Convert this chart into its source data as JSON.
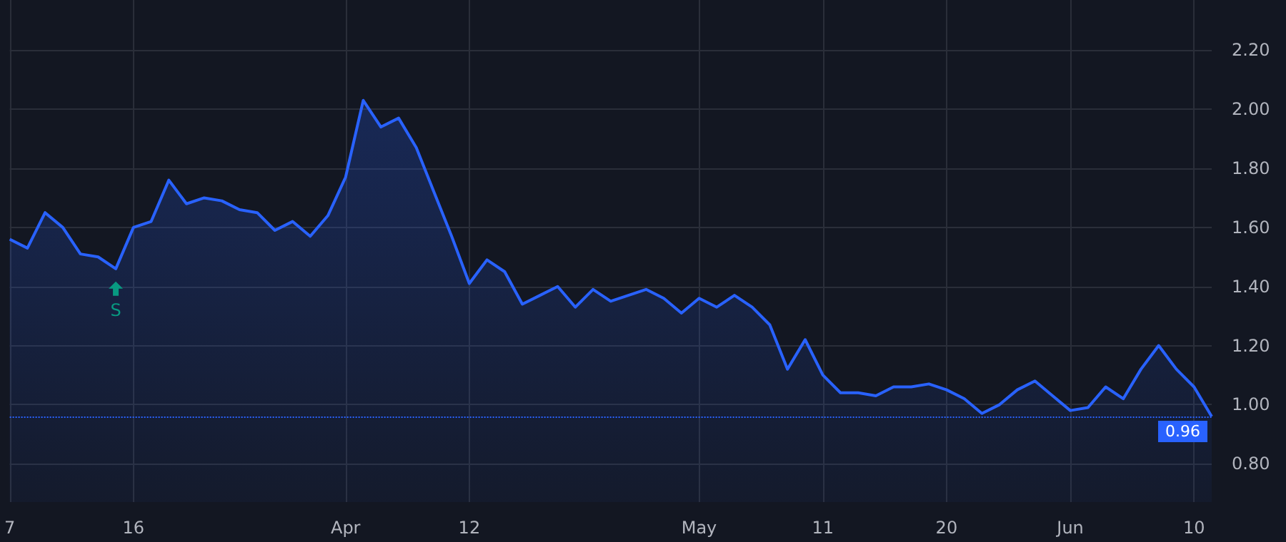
{
  "chart_data": {
    "type": "area",
    "categories": [
      "7",
      null,
      null,
      null,
      null,
      null,
      null,
      "16",
      null,
      null,
      null,
      null,
      null,
      null,
      null,
      null,
      null,
      null,
      null,
      "Apr",
      null,
      null,
      null,
      null,
      null,
      null,
      "12",
      null,
      null,
      null,
      null,
      null,
      null,
      null,
      null,
      null,
      null,
      null,
      null,
      "May",
      null,
      null,
      null,
      null,
      null,
      null,
      "11",
      null,
      null,
      null,
      null,
      null,
      null,
      "20",
      null,
      null,
      null,
      null,
      null,
      null,
      "Jun",
      null,
      null,
      null,
      null,
      null,
      null,
      "10",
      null
    ],
    "series": [
      {
        "color": "#2962ff",
        "values": [
          1.56,
          1.53,
          1.65,
          1.6,
          1.51,
          1.5,
          1.46,
          1.6,
          1.62,
          1.76,
          1.68,
          1.7,
          1.69,
          1.66,
          1.65,
          1.59,
          1.62,
          1.57,
          1.64,
          1.77,
          2.03,
          1.94,
          1.97,
          1.87,
          1.72,
          1.57,
          1.41,
          1.49,
          1.45,
          1.34,
          1.37,
          1.4,
          1.33,
          1.39,
          1.35,
          1.37,
          1.39,
          1.36,
          1.31,
          1.36,
          1.33,
          1.37,
          1.33,
          1.27,
          1.12,
          1.22,
          1.1,
          1.04,
          1.04,
          1.03,
          1.06,
          1.06,
          1.07,
          1.05,
          1.02,
          0.97,
          1.0,
          1.05,
          1.08,
          1.03,
          0.98,
          0.99,
          1.06,
          1.02,
          1.12,
          1.2,
          1.12,
          1.06,
          0.96
        ]
      }
    ],
    "ylim": [
      0.67,
      2.37
    ],
    "yticks": [
      {
        "value": 0.8,
        "label": "0.80"
      },
      {
        "value": 1.0,
        "label": "1.00"
      },
      {
        "value": 1.2,
        "label": "1.20"
      },
      {
        "value": 1.4,
        "label": "1.40"
      },
      {
        "value": 1.6,
        "label": "1.60"
      },
      {
        "value": 1.8,
        "label": "1.80"
      },
      {
        "value": 2.0,
        "label": "2.00"
      },
      {
        "value": 2.2,
        "label": "2.20"
      }
    ],
    "ref_lines": [
      {
        "axis": "y",
        "value": 0.96,
        "label": "0.96",
        "color": "#2962ff",
        "line_style": "dotted"
      }
    ],
    "annotations": [
      {
        "text": "S",
        "y": 1.46
      }
    ],
    "grid": true
  }
}
